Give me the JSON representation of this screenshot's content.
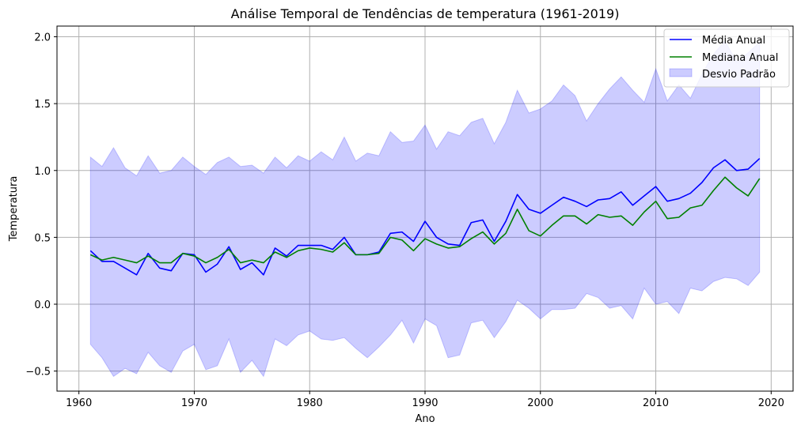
{
  "chart_data": {
    "type": "line",
    "title": "Análise Temporal de Tendências de temperatura (1961-2019)",
    "xlabel": "Ano",
    "ylabel": "Temperatura",
    "xlim": [
      1958.1,
      2021.9
    ],
    "ylim": [
      -0.65,
      2.08
    ],
    "xticks": [
      1960,
      1970,
      1980,
      1990,
      2000,
      2010,
      2020
    ],
    "yticks": [
      -0.5,
      0.0,
      0.5,
      1.0,
      1.5,
      2.0
    ],
    "xtick_labels": [
      "1960",
      "1970",
      "1980",
      "1990",
      "2000",
      "2010",
      "2020"
    ],
    "ytick_labels": [
      "−0.5",
      "0.0",
      "0.5",
      "1.0",
      "1.5",
      "2.0"
    ],
    "grid": true,
    "legend_position": "top-right",
    "x": [
      1961,
      1962,
      1963,
      1964,
      1965,
      1966,
      1967,
      1968,
      1969,
      1970,
      1971,
      1972,
      1973,
      1974,
      1975,
      1976,
      1977,
      1978,
      1979,
      1980,
      1981,
      1982,
      1983,
      1984,
      1985,
      1986,
      1987,
      1988,
      1989,
      1990,
      1991,
      1992,
      1993,
      1994,
      1995,
      1996,
      1997,
      1998,
      1999,
      2000,
      2001,
      2002,
      2003,
      2004,
      2005,
      2006,
      2007,
      2008,
      2009,
      2010,
      2011,
      2012,
      2013,
      2014,
      2015,
      2016,
      2017,
      2018,
      2019
    ],
    "series": [
      {
        "name": "Média Anual",
        "color": "#0000ff",
        "kind": "line",
        "values": [
          0.4,
          0.32,
          0.32,
          0.27,
          0.22,
          0.38,
          0.27,
          0.25,
          0.38,
          0.37,
          0.24,
          0.3,
          0.43,
          0.26,
          0.31,
          0.22,
          0.42,
          0.36,
          0.44,
          0.44,
          0.44,
          0.41,
          0.5,
          0.37,
          0.37,
          0.39,
          0.53,
          0.54,
          0.47,
          0.62,
          0.5,
          0.45,
          0.44,
          0.61,
          0.63,
          0.47,
          0.62,
          0.82,
          0.71,
          0.68,
          0.74,
          0.8,
          0.77,
          0.73,
          0.78,
          0.79,
          0.84,
          0.74,
          0.81,
          0.88,
          0.77,
          0.79,
          0.83,
          0.91,
          1.02,
          1.08,
          1.0,
          1.01,
          1.09
        ]
      },
      {
        "name": "Mediana Anual",
        "color": "#008000",
        "kind": "line",
        "values": [
          0.37,
          0.33,
          0.35,
          0.33,
          0.31,
          0.36,
          0.31,
          0.31,
          0.38,
          0.36,
          0.31,
          0.35,
          0.41,
          0.31,
          0.33,
          0.31,
          0.39,
          0.35,
          0.4,
          0.42,
          0.41,
          0.39,
          0.46,
          0.37,
          0.37,
          0.38,
          0.5,
          0.48,
          0.4,
          0.49,
          0.45,
          0.42,
          0.43,
          0.49,
          0.54,
          0.45,
          0.53,
          0.71,
          0.55,
          0.51,
          0.59,
          0.66,
          0.66,
          0.6,
          0.67,
          0.65,
          0.66,
          0.59,
          0.69,
          0.77,
          0.64,
          0.65,
          0.72,
          0.74,
          0.85,
          0.95,
          0.87,
          0.81,
          0.94
        ]
      },
      {
        "name": "Desvio Padrão",
        "color": "#0000ff",
        "kind": "band",
        "upper": [
          1.1,
          1.03,
          1.17,
          1.02,
          0.96,
          1.11,
          0.98,
          1.0,
          1.1,
          1.03,
          0.97,
          1.06,
          1.1,
          1.03,
          1.04,
          0.98,
          1.1,
          1.02,
          1.11,
          1.07,
          1.14,
          1.08,
          1.25,
          1.07,
          1.13,
          1.11,
          1.29,
          1.21,
          1.22,
          1.34,
          1.16,
          1.29,
          1.26,
          1.36,
          1.39,
          1.2,
          1.36,
          1.6,
          1.43,
          1.46,
          1.52,
          1.64,
          1.56,
          1.37,
          1.5,
          1.61,
          1.7,
          1.6,
          1.51,
          1.76,
          1.52,
          1.64,
          1.54,
          1.72,
          1.87,
          1.97,
          1.81,
          1.88,
          1.96
        ],
        "lower": [
          -0.3,
          -0.4,
          -0.54,
          -0.48,
          -0.52,
          -0.36,
          -0.46,
          -0.51,
          -0.35,
          -0.3,
          -0.49,
          -0.46,
          -0.26,
          -0.51,
          -0.42,
          -0.54,
          -0.26,
          -0.31,
          -0.23,
          -0.2,
          -0.26,
          -0.27,
          -0.25,
          -0.33,
          -0.4,
          -0.32,
          -0.23,
          -0.12,
          -0.29,
          -0.11,
          -0.16,
          -0.4,
          -0.38,
          -0.14,
          -0.12,
          -0.25,
          -0.13,
          0.03,
          -0.03,
          -0.11,
          -0.04,
          -0.04,
          -0.03,
          0.08,
          0.05,
          -0.03,
          -0.01,
          -0.11,
          0.12,
          0.0,
          0.02,
          -0.07,
          0.12,
          0.1,
          0.17,
          0.2,
          0.19,
          0.14,
          0.24
        ]
      }
    ]
  }
}
